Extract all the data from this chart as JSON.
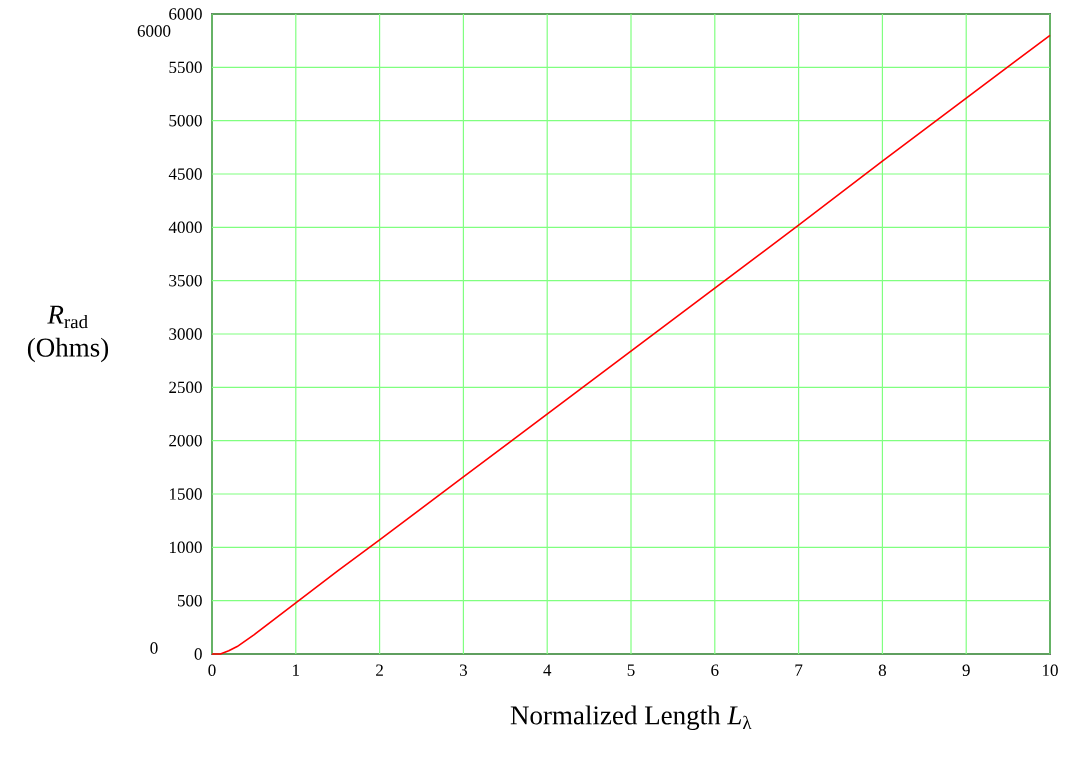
{
  "chart_data": {
    "type": "line",
    "xlabel": "Normalized Length *L*$_{λ}$",
    "ylabel": "*R*$_{rad}$ (Ohms)",
    "x": [
      0,
      0.1,
      0.2,
      0.3,
      0.5,
      0.75,
      1,
      1.5,
      2,
      3,
      4,
      5,
      6,
      7,
      8,
      9,
      10
    ],
    "series": [
      {
        "color": "#ff0000",
        "values": [
          0,
          0,
          30,
          70,
          180,
          330,
          480,
          780,
          1070,
          1660,
          2250,
          2840,
          3430,
          4020,
          4620,
          5210,
          5800
        ]
      }
    ],
    "xlim": [
      0,
      10
    ],
    "xticks": [
      0,
      1,
      2,
      3,
      4,
      5,
      6,
      7,
      8,
      9,
      10
    ],
    "ylim": [
      0,
      6000
    ],
    "yticks": [
      0,
      500,
      1000,
      1500,
      2000,
      2500,
      3000,
      3500,
      4000,
      4500,
      5000,
      5500,
      6000
    ],
    "grid": true,
    "marker": "none",
    "line_style": "solid",
    "annotations": [
      "6000",
      "0"
    ]
  }
}
